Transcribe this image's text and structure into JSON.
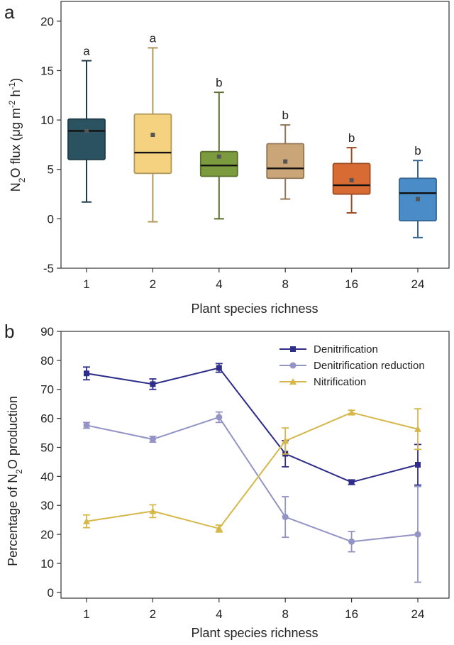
{
  "chart_data": [
    {
      "panel": "a",
      "type": "box",
      "categories": [
        "1",
        "2",
        "4",
        "8",
        "16",
        "24"
      ],
      "xlabel": "Plant species richness",
      "ylabel_parts": {
        "n": "N",
        "sub2": "2",
        "o_flux": "O flux (μg m",
        "sup_m2": "-2",
        "h": " h",
        "sup_h1": "-1",
        "close": ")"
      },
      "ylim": [
        -5,
        22
      ],
      "yticks": [
        -5,
        0,
        5,
        10,
        15,
        20
      ],
      "boxes": [
        {
          "category": "1",
          "min": 1.7,
          "q1": 6.0,
          "median": 8.9,
          "q3": 10.1,
          "max": 16.0,
          "mean": 8.9,
          "letter": "a",
          "color": "#2b5260"
        },
        {
          "category": "2",
          "min": -0.3,
          "q1": 4.6,
          "median": 6.7,
          "q3": 10.6,
          "max": 17.3,
          "mean": 8.5,
          "letter": "a",
          "color": "#f5d27f"
        },
        {
          "category": "4",
          "min": 0.0,
          "q1": 4.3,
          "median": 5.4,
          "q3": 6.8,
          "max": 12.8,
          "mean": 6.3,
          "letter": "b",
          "color": "#7c9a3e"
        },
        {
          "category": "8",
          "min": 2.0,
          "q1": 4.1,
          "median": 5.1,
          "q3": 7.6,
          "max": 9.5,
          "mean": 5.8,
          "letter": "b",
          "color": "#c9a577"
        },
        {
          "category": "16",
          "min": 0.6,
          "q1": 2.5,
          "median": 3.4,
          "q3": 5.6,
          "max": 7.2,
          "mean": 3.9,
          "letter": "b",
          "color": "#d86b33"
        },
        {
          "category": "24",
          "min": -1.9,
          "q1": -0.2,
          "median": 2.6,
          "q3": 4.1,
          "max": 5.9,
          "mean": 2.0,
          "letter": "b",
          "color": "#4a8cc8"
        }
      ]
    },
    {
      "panel": "b",
      "type": "line",
      "categories": [
        "1",
        "2",
        "4",
        "8",
        "16",
        "24"
      ],
      "xlabel": "Plant species richness",
      "ylabel_parts": {
        "pre": "Percentage of N",
        "sub2": "2",
        "post": "O production"
      },
      "ylim": [
        -2,
        90
      ],
      "yticks": [
        0,
        10,
        20,
        30,
        40,
        50,
        60,
        70,
        80,
        90
      ],
      "legend_position": "top-right",
      "series": [
        {
          "name": "Denitrification",
          "marker": "square",
          "color": "#2e2e8a",
          "values": [
            75.5,
            71.8,
            77.4,
            47.8,
            38.0,
            44.0
          ],
          "errors": [
            2.2,
            1.8,
            1.5,
            4.5,
            0.8,
            7.0
          ]
        },
        {
          "name": "Denitrification reduction",
          "marker": "circle",
          "color": "#9393c6",
          "values": [
            57.6,
            52.8,
            60.4,
            26.0,
            17.5,
            20.0
          ],
          "errors": [
            1.0,
            1.0,
            1.8,
            7.0,
            3.5,
            16.5
          ]
        },
        {
          "name": "Nitrification",
          "marker": "triangle",
          "color": "#d6b84a",
          "values": [
            24.5,
            28.0,
            22.0,
            52.2,
            62.0,
            56.3
          ],
          "errors": [
            2.2,
            2.2,
            1.2,
            4.5,
            0.8,
            7.0
          ]
        }
      ]
    }
  ]
}
